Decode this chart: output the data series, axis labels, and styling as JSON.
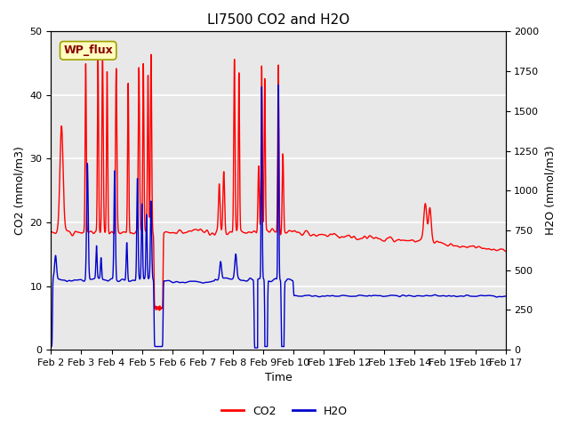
{
  "title": "LI7500 CO2 and H2O",
  "xlabel": "Time",
  "ylabel_left": "CO2 (mmol/m3)",
  "ylabel_right": "H2O (mmol/m3)",
  "annotation_text": "WP_flux",
  "co2_color": "#FF0000",
  "h2o_color": "#0000CC",
  "co2_ylim": [
    0,
    50
  ],
  "h2o_ylim": [
    0,
    2000
  ],
  "h2o_scale": 40.0,
  "fig_facecolor": "#FFFFFF",
  "axes_facecolor": "#E8E8E8",
  "legend_co2": "CO2",
  "legend_h2o": "H2O",
  "grid_color": "#FFFFFF",
  "title_fontsize": 11,
  "label_fontsize": 9,
  "tick_label_fontsize": 8,
  "linewidth": 1.0,
  "x_ticks": [
    0,
    1,
    2,
    3,
    4,
    5,
    6,
    7,
    8,
    9,
    10,
    11,
    12,
    13,
    14,
    15
  ],
  "x_labels": [
    "Feb 2",
    "Feb 3",
    "Feb 4",
    "Feb 5",
    "Feb 6",
    "Feb 7",
    "Feb 8",
    "Feb 9",
    "Feb 10",
    "Feb 11",
    "Feb 12",
    "Feb 13",
    "Feb 14",
    "Feb 15",
    "Feb 16",
    "Feb 17"
  ]
}
